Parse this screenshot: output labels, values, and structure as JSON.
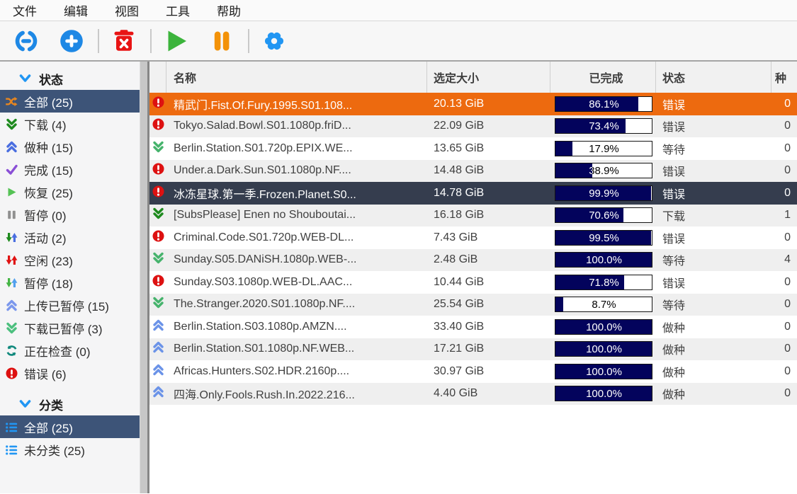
{
  "menu": {
    "items": [
      "文件",
      "编辑",
      "视图",
      "工具",
      "帮助"
    ]
  },
  "toolbar": {
    "buttons": [
      {
        "name": "add-torrent-link-button",
        "icon": "add-link-icon"
      },
      {
        "name": "add-torrent-file-button",
        "icon": "add-plus-icon"
      },
      {
        "type": "separator"
      },
      {
        "name": "delete-torrent-button",
        "icon": "trash-icon"
      },
      {
        "type": "separator"
      },
      {
        "name": "resume-button",
        "icon": "play-icon"
      },
      {
        "name": "pause-button",
        "icon": "pause-icon"
      },
      {
        "type": "separator"
      },
      {
        "name": "options-button",
        "icon": "gear-icon"
      }
    ]
  },
  "sidebar": {
    "sections": [
      {
        "title": "状态",
        "items": [
          {
            "icon": "shuffle",
            "label": "全部 (25)",
            "selected": true
          },
          {
            "icon": "dbl-down-dark",
            "label": "下载 (4)",
            "selected": false
          },
          {
            "icon": "dbl-up-blue",
            "label": "做种 (15)",
            "selected": false
          },
          {
            "icon": "check",
            "label": "完成 (15)",
            "selected": false
          },
          {
            "icon": "play-small",
            "label": "恢复 (25)",
            "selected": false
          },
          {
            "icon": "pause-small",
            "label": "暂停 (0)",
            "selected": false
          },
          {
            "icon": "arrows-active",
            "label": "活动 (2)",
            "selected": false
          },
          {
            "icon": "arrows-idle",
            "label": "空闲 (23)",
            "selected": false
          },
          {
            "icon": "arrows-paused",
            "label": "暂停 (18)",
            "selected": false
          },
          {
            "icon": "dbl-up-light",
            "label": "上传已暂停 (15)",
            "selected": false
          },
          {
            "icon": "dbl-down-light",
            "label": "下载已暂停 (3)",
            "selected": false
          },
          {
            "icon": "refresh",
            "label": "正在检查 (0)",
            "selected": false
          },
          {
            "icon": "error",
            "label": "错误 (6)",
            "selected": false
          }
        ]
      },
      {
        "title": "分类",
        "items": [
          {
            "icon": "list",
            "label": "全部 (25)",
            "selected": true
          },
          {
            "icon": "list",
            "label": "未分类 (25)",
            "selected": false
          }
        ]
      }
    ]
  },
  "table": {
    "columns": [
      "名称",
      "选定大小",
      "已完成",
      "状态",
      "种"
    ],
    "rows": [
      {
        "icon": "error",
        "name": "精武门.Fist.Of.Fury.1995.S01.108...",
        "size": "20.13 GiB",
        "progress": 86.1,
        "progress_label": "86.1%",
        "status": "错误",
        "seeds": "0",
        "state": "highlight"
      },
      {
        "icon": "error",
        "name": "Tokyo.Salad.Bowl.S01.1080p.friD...",
        "size": "22.09 GiB",
        "progress": 73.4,
        "progress_label": "73.4%",
        "status": "错误",
        "seeds": "0",
        "state": "normal"
      },
      {
        "icon": "dl-stalled",
        "name": "Berlin.Station.S01.720p.EPIX.WE...",
        "size": "13.65 GiB",
        "progress": 17.9,
        "progress_label": "17.9%",
        "status": "等待",
        "seeds": "0",
        "state": "normal"
      },
      {
        "icon": "error",
        "name": "Under.a.Dark.Sun.S01.1080p.NF....",
        "size": "14.48 GiB",
        "progress": 38.9,
        "progress_label": "38.9%",
        "status": "错误",
        "seeds": "0",
        "state": "normal"
      },
      {
        "icon": "error",
        "name": "冰冻星球.第一季.Frozen.Planet.S0...",
        "size": "14.78 GiB",
        "progress": 99.9,
        "progress_label": "99.9%",
        "status": "错误",
        "seeds": "0",
        "state": "selected"
      },
      {
        "icon": "dl-active",
        "name": "[SubsPlease] Enen no Shouboutai...",
        "size": "16.18 GiB",
        "progress": 70.6,
        "progress_label": "70.6%",
        "status": "下载",
        "seeds": "1",
        "state": "normal"
      },
      {
        "icon": "error",
        "name": "Criminal.Code.S01.720p.WEB-DL...",
        "size": "7.43 GiB",
        "progress": 99.5,
        "progress_label": "99.5%",
        "status": "错误",
        "seeds": "0",
        "state": "normal"
      },
      {
        "icon": "dl-stalled",
        "name": "Sunday.S05.DANiSH.1080p.WEB-...",
        "size": "2.48 GiB",
        "progress": 100.0,
        "progress_label": "100.0%",
        "status": "等待",
        "seeds": "4",
        "state": "normal"
      },
      {
        "icon": "error",
        "name": "Sunday.S03.1080p.WEB-DL.AAC...",
        "size": "10.44 GiB",
        "progress": 71.8,
        "progress_label": "71.8%",
        "status": "错误",
        "seeds": "0",
        "state": "normal"
      },
      {
        "icon": "dl-stalled",
        "name": "The.Stranger.2020.S01.1080p.NF....",
        "size": "25.54 GiB",
        "progress": 8.7,
        "progress_label": "8.7%",
        "status": "等待",
        "seeds": "0",
        "state": "normal"
      },
      {
        "icon": "seed-stalled",
        "name": "Berlin.Station.S03.1080p.AMZN....",
        "size": "33.40 GiB",
        "progress": 100.0,
        "progress_label": "100.0%",
        "status": "做种",
        "seeds": "0",
        "state": "normal"
      },
      {
        "icon": "seed-stalled",
        "name": "Berlin.Station.S01.1080p.NF.WEB...",
        "size": "17.21 GiB",
        "progress": 100.0,
        "progress_label": "100.0%",
        "status": "做种",
        "seeds": "0",
        "state": "normal"
      },
      {
        "icon": "seed-stalled",
        "name": "Africas.Hunters.S02.HDR.2160p....",
        "size": "30.97 GiB",
        "progress": 100.0,
        "progress_label": "100.0%",
        "status": "做种",
        "seeds": "0",
        "state": "normal"
      },
      {
        "icon": "seed-stalled",
        "name": "四海.Only.Fools.Rush.In.2022.216...",
        "size": "4.40 GiB",
        "progress": 100.0,
        "progress_label": "100.0%",
        "status": "做种",
        "seeds": "0",
        "state": "normal"
      }
    ]
  },
  "colors": {
    "accent_blue": "#1e88e5",
    "progress_fill": "#03035c",
    "highlight_row": "#ed6a0f",
    "selected_row": "#353d4e",
    "sidebar_selected": "#3d5478",
    "error_red": "#dd1111",
    "play_green": "#3cb43c",
    "pause_orange": "#f39208",
    "trash_red": "#e81414"
  }
}
